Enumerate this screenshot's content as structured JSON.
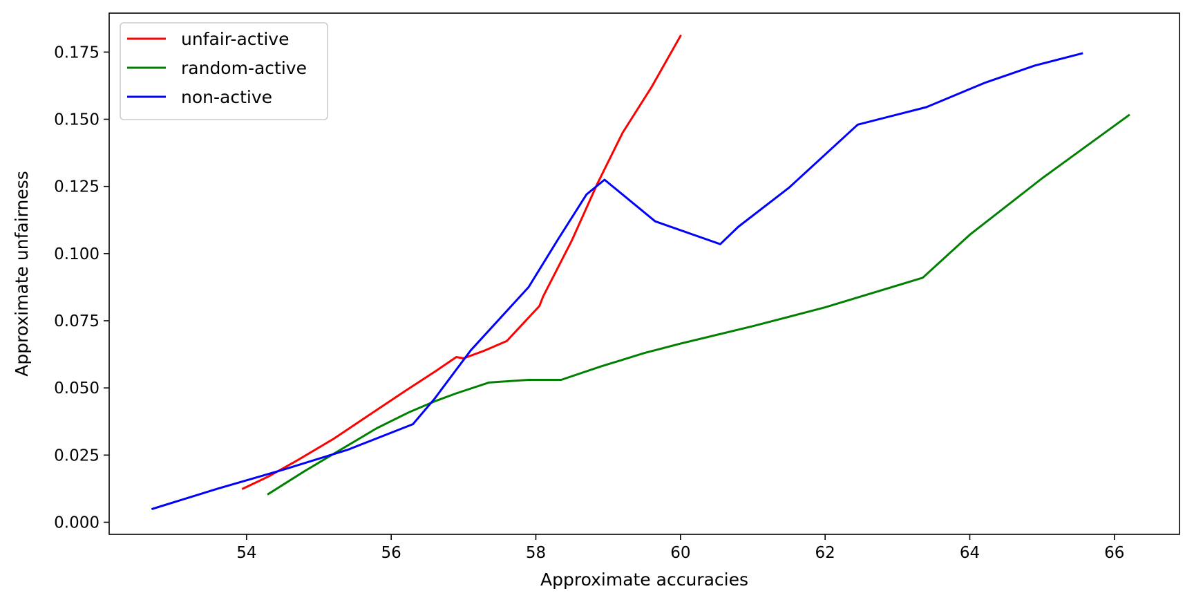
{
  "chart_data": {
    "type": "line",
    "title": "",
    "xlabel": "Approximate accuracies",
    "ylabel": "Approximate unfairness",
    "xlim": [
      52.1,
      66.9
    ],
    "ylim": [
      -0.0045,
      0.1895
    ],
    "xticks": [
      54,
      56,
      58,
      60,
      62,
      64,
      66
    ],
    "xtick_labels": [
      "54",
      "56",
      "58",
      "60",
      "62",
      "64",
      "66"
    ],
    "yticks": [
      0.0,
      0.025,
      0.05,
      0.075,
      0.1,
      0.125,
      0.15,
      0.175
    ],
    "ytick_labels": [
      "0.000",
      "0.025",
      "0.050",
      "0.075",
      "0.100",
      "0.125",
      "0.150",
      "0.175"
    ],
    "grid": false,
    "legend_position": "top-left",
    "series": [
      {
        "name": "unfair-active",
        "color": "#ff0000",
        "x": [
          53.95,
          54.3,
          54.7,
          55.2,
          55.7,
          56.2,
          56.6,
          56.9,
          57.0,
          57.3,
          57.6,
          58.05,
          58.1,
          58.5,
          58.85,
          59.2,
          59.6,
          60.0
        ],
        "y": [
          0.0125,
          0.017,
          0.023,
          0.031,
          0.04,
          0.049,
          0.056,
          0.0615,
          0.061,
          0.064,
          0.0675,
          0.0805,
          0.084,
          0.105,
          0.126,
          0.145,
          0.162,
          0.181
        ]
      },
      {
        "name": "random-active",
        "color": "#008000",
        "x": [
          54.3,
          54.8,
          55.3,
          55.8,
          56.25,
          56.6,
          56.9,
          57.35,
          57.9,
          58.35,
          58.9,
          59.5,
          60.0,
          61.0,
          62.0,
          63.35,
          64.0,
          65.0,
          66.2
        ],
        "y": [
          0.0105,
          0.019,
          0.027,
          0.035,
          0.041,
          0.045,
          0.048,
          0.052,
          0.053,
          0.053,
          0.058,
          0.063,
          0.0665,
          0.073,
          0.08,
          0.091,
          0.107,
          0.128,
          0.1515
        ]
      },
      {
        "name": "non-active",
        "color": "#0000ff",
        "x": [
          52.7,
          53.6,
          54.5,
          55.4,
          56.3,
          56.6,
          57.1,
          57.9,
          58.3,
          58.7,
          58.95,
          59.65,
          60.55,
          60.8,
          61.5,
          62.45,
          63.4,
          64.2,
          64.9,
          65.55
        ],
        "y": [
          0.005,
          0.0125,
          0.0195,
          0.027,
          0.0365,
          0.046,
          0.064,
          0.0875,
          0.105,
          0.122,
          0.1275,
          0.112,
          0.1035,
          0.11,
          0.1245,
          0.148,
          0.1545,
          0.1635,
          0.17,
          0.1745
        ]
      }
    ]
  }
}
